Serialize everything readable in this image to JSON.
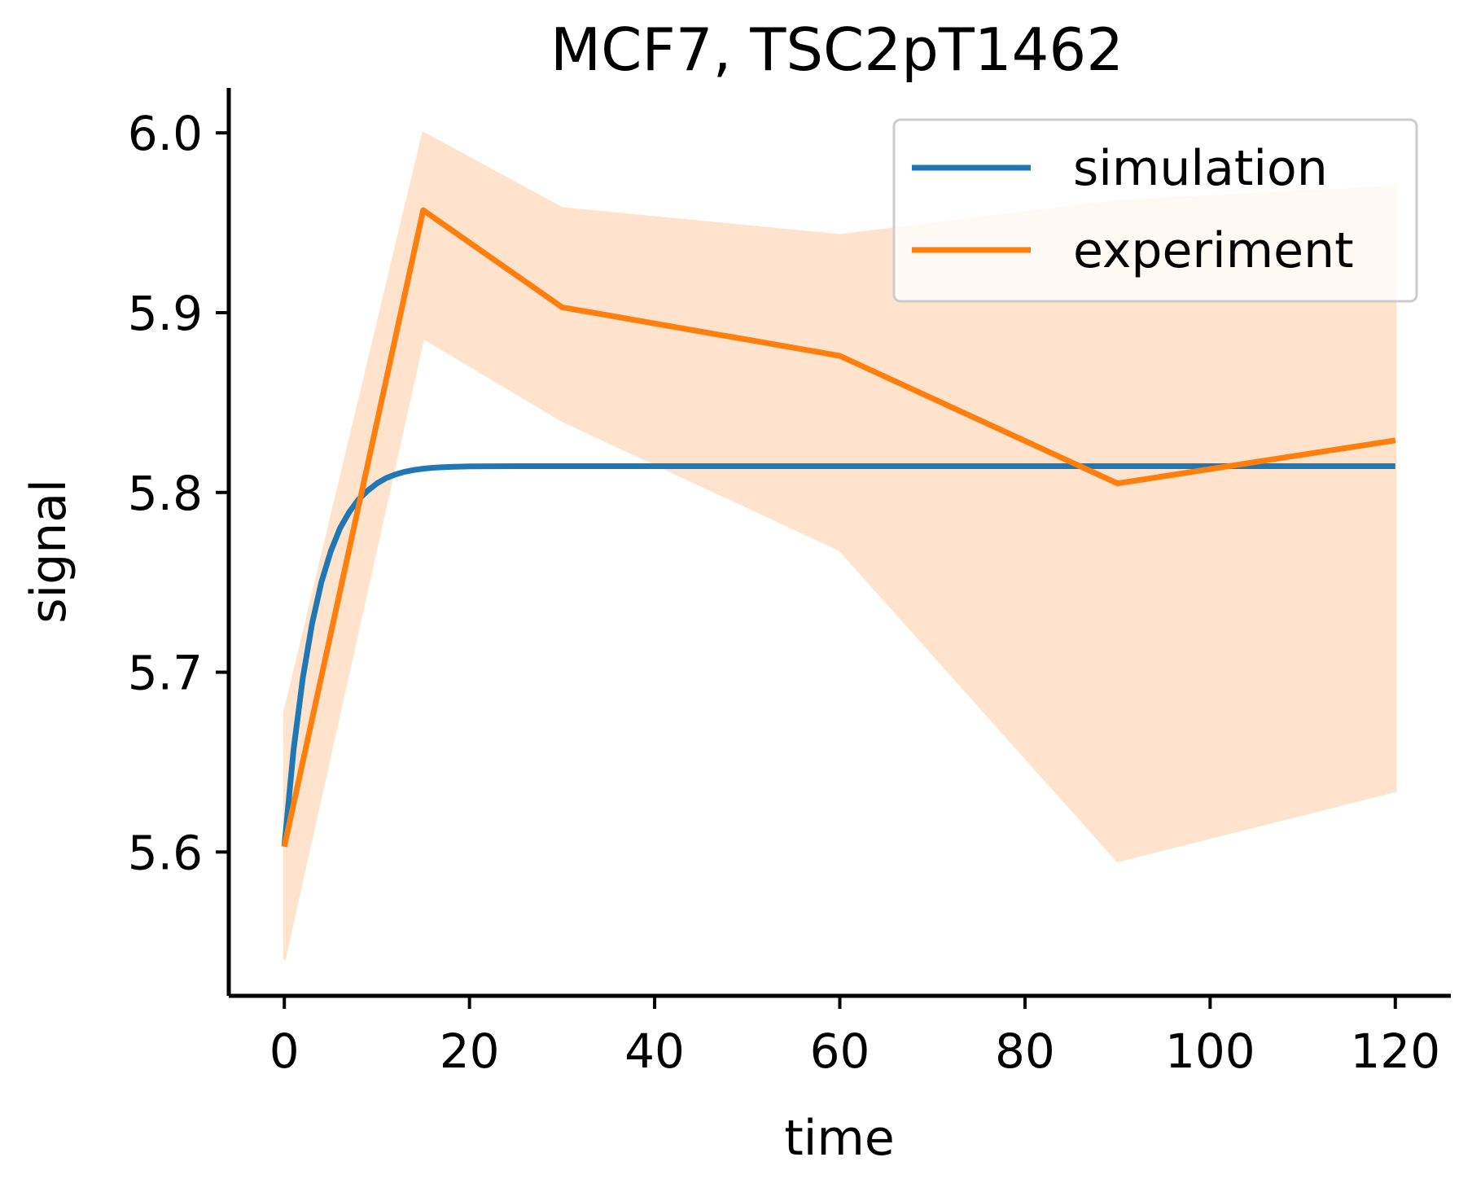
{
  "chart_data": {
    "type": "line",
    "title": "MCF7, TSC2pT1462",
    "xlabel": "time",
    "ylabel": "signal",
    "xlim": [
      -6,
      126
    ],
    "ylim": [
      5.52,
      6.025
    ],
    "xticks": [
      0,
      20,
      40,
      60,
      80,
      100,
      120
    ],
    "xtick_labels": [
      "0",
      "20",
      "40",
      "60",
      "80",
      "100",
      "120"
    ],
    "yticks": [
      5.6,
      5.7,
      5.8,
      5.9,
      6.0
    ],
    "ytick_labels": [
      "5.6",
      "5.7",
      "5.8",
      "5.9",
      "6.0"
    ],
    "grid": false,
    "legend_position": "top-right",
    "series": [
      {
        "name": "simulation",
        "color": "#1f77b4",
        "x": [
          0,
          1,
          2,
          3,
          4,
          5,
          6,
          7,
          8,
          9,
          10,
          11,
          12,
          13,
          14,
          15,
          16,
          17,
          18,
          20,
          25,
          30,
          40,
          60,
          80,
          100,
          120
        ],
        "y": [
          5.603,
          5.657,
          5.697,
          5.727,
          5.75,
          5.767,
          5.78,
          5.789,
          5.796,
          5.801,
          5.805,
          5.808,
          5.81,
          5.8115,
          5.8125,
          5.8132,
          5.8137,
          5.814,
          5.8142,
          5.8145,
          5.8146,
          5.8146,
          5.8146,
          5.8146,
          5.8146,
          5.8146,
          5.8146
        ]
      },
      {
        "name": "experiment",
        "color": "#ff7f0e",
        "band_color": "#ffe3cc",
        "x": [
          0,
          15,
          30,
          60,
          90,
          120
        ],
        "y": [
          5.603,
          5.957,
          5.903,
          5.876,
          5.805,
          5.829
        ],
        "lower": [
          5.54,
          5.886,
          5.84,
          5.768,
          5.595,
          5.634
        ],
        "upper": [
          5.677,
          6.0,
          5.958,
          5.943,
          5.962,
          5.97
        ]
      }
    ]
  }
}
